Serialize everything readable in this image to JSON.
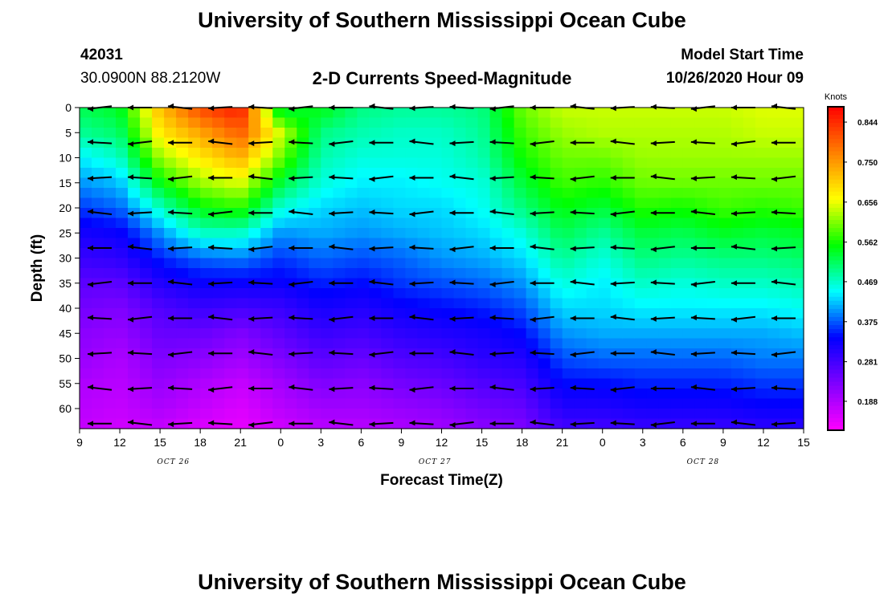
{
  "header": {
    "title_top": "University of Southern Mississippi Ocean Cube",
    "title_bottom": "University of Southern Mississippi Ocean Cube",
    "station_id": "42031",
    "station_coords": "30.0900N 88.2120W",
    "plot_title": "2-D Currents Speed-Magnitude",
    "model_label": "Model Start Time",
    "model_time": "10/26/2020 Hour 09"
  },
  "chart_data": {
    "type": "heatmap",
    "title": "2-D Currents Speed-Magnitude",
    "xlabel": "Forecast Time(Z)",
    "ylabel": "Depth (ft)",
    "x_tick_labels": [
      "9",
      "12",
      "15",
      "18",
      "21",
      "0",
      "3",
      "6",
      "9",
      "12",
      "15",
      "18",
      "21",
      "0",
      "3",
      "6",
      "9",
      "12",
      "15"
    ],
    "x_tick_hours": [
      0,
      3,
      6,
      9,
      12,
      15,
      18,
      21,
      24,
      27,
      30,
      33,
      36,
      39,
      42,
      45,
      48,
      51,
      54
    ],
    "xlim_hours": [
      0,
      54
    ],
    "date_labels": [
      {
        "label": "OCT 26",
        "hour": 7
      },
      {
        "label": "OCT 27",
        "hour": 26.5
      },
      {
        "label": "OCT 28",
        "hour": 46.5
      }
    ],
    "y_ticks": [
      0,
      5,
      10,
      15,
      20,
      25,
      30,
      35,
      40,
      45,
      50,
      55,
      60
    ],
    "ylim": [
      0,
      64
    ],
    "y_inverted": true,
    "colorbar": {
      "unit": "Knots",
      "ticks": [
        0.188,
        0.281,
        0.375,
        0.469,
        0.562,
        0.656,
        0.75,
        0.844
      ],
      "tick_labels": [
        "0.188",
        "0.281",
        "0.375",
        "0.469",
        "0.562",
        "0.656",
        "0.750",
        "0.844"
      ],
      "range": [
        0.12,
        0.88
      ],
      "colors": [
        "#ff00ff",
        "#8000ff",
        "#0000ff",
        "#00ffff",
        "#00ff00",
        "#ffff00",
        "#ff8000",
        "#ff0000"
      ]
    },
    "speed_grid": {
      "hours": [
        0,
        3,
        6,
        9,
        12,
        15,
        18,
        21,
        24,
        27,
        30,
        33,
        36,
        39,
        42,
        45,
        48,
        51,
        54
      ],
      "depths": [
        0,
        5,
        10,
        15,
        20,
        25,
        30,
        35,
        40,
        45,
        50,
        55,
        60,
        64
      ],
      "values": [
        [
          0.52,
          0.49,
          0.44,
          0.4,
          0.36,
          0.32,
          0.29,
          0.26,
          0.24,
          0.22,
          0.21,
          0.19,
          0.18,
          0.17
        ],
        [
          0.54,
          0.51,
          0.47,
          0.42,
          0.38,
          0.33,
          0.3,
          0.26,
          0.23,
          0.21,
          0.19,
          0.18,
          0.17,
          0.16
        ],
        [
          0.72,
          0.68,
          0.62,
          0.55,
          0.47,
          0.4,
          0.35,
          0.31,
          0.27,
          0.25,
          0.23,
          0.21,
          0.19,
          0.17
        ],
        [
          0.82,
          0.74,
          0.68,
          0.62,
          0.55,
          0.47,
          0.38,
          0.33,
          0.29,
          0.25,
          0.22,
          0.19,
          0.17,
          0.15
        ],
        [
          0.86,
          0.8,
          0.73,
          0.65,
          0.57,
          0.47,
          0.39,
          0.33,
          0.28,
          0.23,
          0.2,
          0.17,
          0.15,
          0.14
        ],
        [
          0.52,
          0.64,
          0.6,
          0.53,
          0.46,
          0.4,
          0.36,
          0.33,
          0.29,
          0.26,
          0.23,
          0.2,
          0.18,
          0.16
        ],
        [
          0.55,
          0.5,
          0.48,
          0.46,
          0.43,
          0.41,
          0.38,
          0.35,
          0.32,
          0.29,
          0.26,
          0.23,
          0.2,
          0.18
        ],
        [
          0.5,
          0.48,
          0.46,
          0.44,
          0.42,
          0.4,
          0.37,
          0.34,
          0.31,
          0.28,
          0.25,
          0.22,
          0.2,
          0.18
        ],
        [
          0.49,
          0.47,
          0.46,
          0.44,
          0.43,
          0.41,
          0.38,
          0.36,
          0.33,
          0.3,
          0.27,
          0.24,
          0.21,
          0.19
        ],
        [
          0.49,
          0.47,
          0.46,
          0.45,
          0.43,
          0.42,
          0.4,
          0.37,
          0.34,
          0.31,
          0.28,
          0.25,
          0.22,
          0.2
        ],
        [
          0.5,
          0.49,
          0.48,
          0.46,
          0.45,
          0.43,
          0.41,
          0.38,
          0.35,
          0.32,
          0.3,
          0.27,
          0.24,
          0.22
        ],
        [
          0.6,
          0.58,
          0.56,
          0.53,
          0.5,
          0.46,
          0.43,
          0.4,
          0.37,
          0.34,
          0.31,
          0.28,
          0.25,
          0.23
        ],
        [
          0.64,
          0.62,
          0.6,
          0.58,
          0.55,
          0.52,
          0.49,
          0.46,
          0.43,
          0.4,
          0.37,
          0.34,
          0.31,
          0.28
        ],
        [
          0.64,
          0.63,
          0.6,
          0.57,
          0.53,
          0.49,
          0.46,
          0.44,
          0.43,
          0.41,
          0.38,
          0.34,
          0.31,
          0.28
        ],
        [
          0.64,
          0.63,
          0.62,
          0.6,
          0.57,
          0.53,
          0.5,
          0.47,
          0.44,
          0.41,
          0.38,
          0.35,
          0.32,
          0.29
        ],
        [
          0.64,
          0.63,
          0.62,
          0.6,
          0.56,
          0.52,
          0.49,
          0.46,
          0.44,
          0.41,
          0.38,
          0.35,
          0.32,
          0.29
        ],
        [
          0.64,
          0.63,
          0.62,
          0.6,
          0.58,
          0.54,
          0.5,
          0.47,
          0.44,
          0.41,
          0.38,
          0.35,
          0.32,
          0.29
        ],
        [
          0.65,
          0.64,
          0.62,
          0.6,
          0.57,
          0.53,
          0.5,
          0.47,
          0.44,
          0.41,
          0.39,
          0.36,
          0.33,
          0.3
        ],
        [
          0.65,
          0.64,
          0.62,
          0.6,
          0.58,
          0.54,
          0.51,
          0.48,
          0.45,
          0.42,
          0.39,
          0.36,
          0.33,
          0.3
        ]
      ]
    },
    "arrow_grid": {
      "hours": [
        1.5,
        4.5,
        7.5,
        10.5,
        13.5,
        16.5,
        19.5,
        22.5,
        25.5,
        28.5,
        31.5,
        34.5,
        37.5,
        40.5,
        43.5,
        46.5,
        49.5,
        52.5
      ],
      "depths": [
        0,
        7,
        14,
        21,
        28,
        35,
        42,
        49,
        56,
        63
      ]
    }
  }
}
